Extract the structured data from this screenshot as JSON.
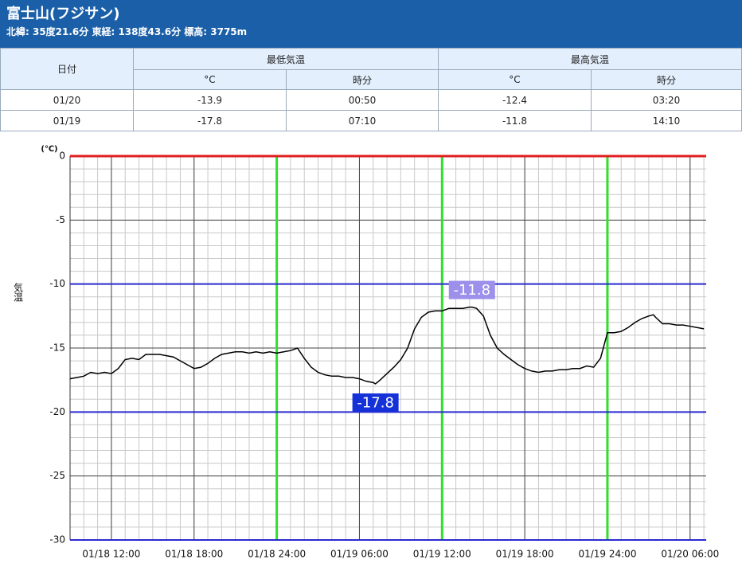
{
  "header": {
    "title": "富士山(フジサン)",
    "subtitle": "北緯: 35度21.6分 東経: 138度43.6分 標高: 3775m"
  },
  "table": {
    "header": [
      "日付",
      "最低気温",
      "最高気温"
    ],
    "subheader": [
      "°C",
      "時分",
      "°C",
      "時分"
    ],
    "rows": [
      [
        "01/20",
        -13.9,
        "00:50",
        -12.4,
        "03:20"
      ],
      [
        "01/19",
        -17.8,
        "07:10",
        -11.8,
        "14:10"
      ]
    ]
  },
  "chart_data": {
    "type": "line",
    "y_unit": "(℃)",
    "y_label": "気温",
    "color": "#000000",
    "x": [
      "01/18 09:00",
      "01/18 09:30",
      "01/18 10:00",
      "01/18 10:30",
      "01/18 11:00",
      "01/18 11:30",
      "01/18 12:00",
      "01/18 12:30",
      "01/18 13:00",
      "01/18 13:30",
      "01/18 14:00",
      "01/18 14:30",
      "01/18 15:00",
      "01/18 15:30",
      "01/18 16:00",
      "01/18 16:30",
      "01/18 17:00",
      "01/18 17:30",
      "01/18 18:00",
      "01/18 18:30",
      "01/18 19:00",
      "01/18 19:30",
      "01/18 20:00",
      "01/18 20:30",
      "01/18 21:00",
      "01/18 21:30",
      "01/18 22:00",
      "01/18 22:30",
      "01/18 23:00",
      "01/18 23:30",
      "01/19 00:00",
      "01/19 00:30",
      "01/19 01:00",
      "01/19 01:30",
      "01/19 02:00",
      "01/19 02:30",
      "01/19 03:00",
      "01/19 03:30",
      "01/19 04:00",
      "01/19 04:30",
      "01/19 05:00",
      "01/19 05:30",
      "01/19 06:00",
      "01/19 06:30",
      "01/19 07:00",
      "01/19 07:10",
      "01/19 07:30",
      "01/19 08:00",
      "01/19 08:30",
      "01/19 09:00",
      "01/19 09:30",
      "01/19 10:00",
      "01/19 10:30",
      "01/19 11:00",
      "01/19 11:30",
      "01/19 12:00",
      "01/19 12:30",
      "01/19 13:00",
      "01/19 13:30",
      "01/19 14:00",
      "01/19 14:10",
      "01/19 14:30",
      "01/19 15:00",
      "01/19 15:30",
      "01/19 16:00",
      "01/19 16:30",
      "01/19 17:00",
      "01/19 17:30",
      "01/19 18:00",
      "01/19 18:30",
      "01/19 19:00",
      "01/19 19:30",
      "01/19 20:00",
      "01/19 20:30",
      "01/19 21:00",
      "01/19 21:30",
      "01/19 22:00",
      "01/19 22:30",
      "01/19 23:00",
      "01/19 23:30",
      "01/20 00:00",
      "01/20 00:30",
      "01/20 01:00",
      "01/20 01:30",
      "01/20 02:00",
      "01/20 02:30",
      "01/20 03:00",
      "01/20 03:20",
      "01/20 03:30",
      "01/20 04:00",
      "01/20 04:30",
      "01/20 05:00",
      "01/20 05:30",
      "01/20 06:00",
      "01/20 06:30",
      "01/20 07:00"
    ],
    "values": [
      -17.4,
      -17.3,
      -17.2,
      -16.9,
      -17.0,
      -16.9,
      -17.0,
      -16.6,
      -15.9,
      -15.8,
      -15.9,
      -15.5,
      -15.5,
      -15.5,
      -15.6,
      -15.7,
      -16.0,
      -16.3,
      -16.6,
      -16.5,
      -16.2,
      -15.8,
      -15.5,
      -15.4,
      -15.3,
      -15.3,
      -15.4,
      -15.3,
      -15.4,
      -15.3,
      -15.4,
      -15.3,
      -15.2,
      -15.0,
      -15.8,
      -16.5,
      -16.9,
      -17.1,
      -17.2,
      -17.2,
      -17.3,
      -17.3,
      -17.4,
      -17.6,
      -17.7,
      -17.8,
      -17.5,
      -17.0,
      -16.5,
      -15.9,
      -15.0,
      -13.5,
      -12.6,
      -12.2,
      -12.1,
      -12.1,
      -11.9,
      -11.9,
      -11.9,
      -11.8,
      -11.8,
      -11.9,
      -12.5,
      -14.0,
      -15.0,
      -15.5,
      -15.9,
      -16.3,
      -16.6,
      -16.8,
      -16.9,
      -16.8,
      -16.8,
      -16.7,
      -16.7,
      -16.6,
      -16.6,
      -16.4,
      -16.5,
      -15.8,
      -13.8,
      -13.8,
      -13.7,
      -13.4,
      -13.0,
      -12.7,
      -12.5,
      -12.4,
      -12.6,
      -13.1,
      -13.1,
      -13.2,
      -13.2,
      -13.3,
      -13.4,
      -13.5
    ],
    "xlim": [
      "01/18 09:00",
      "01/20 07:10"
    ],
    "xticks": [
      "01/18 12:00",
      "01/18 18:00",
      "01/18 24:00",
      "01/19 06:00",
      "01/19 12:00",
      "01/19 18:00",
      "01/19 24:00",
      "01/20 06:00"
    ],
    "ylim": [
      -30,
      0
    ],
    "yticks": [
      0,
      -5,
      -10,
      -15,
      -20,
      -25,
      -30
    ],
    "grid": true,
    "minor_grid": true,
    "hlines": [
      {
        "value": 0,
        "color": "#e02020"
      },
      {
        "value": -10,
        "color": "#2a2ad0"
      },
      {
        "value": -20,
        "color": "#2a2ad0"
      },
      {
        "value": -30,
        "color": "#2a2ad0"
      }
    ],
    "vlines": [
      {
        "value": "01/18 24:00",
        "color": "#2ee02e"
      },
      {
        "value": "01/19 12:00",
        "color": "#2ee02e"
      },
      {
        "value": "01/19 24:00",
        "color": "#2ee02e"
      }
    ],
    "annotations": [
      {
        "x": "01/19 14:10",
        "y": -11.8,
        "color": "#9d90ea",
        "position": "above"
      },
      {
        "x": "01/19 07:10",
        "y": -17.8,
        "color": "#1432d8",
        "position": "below"
      }
    ]
  }
}
